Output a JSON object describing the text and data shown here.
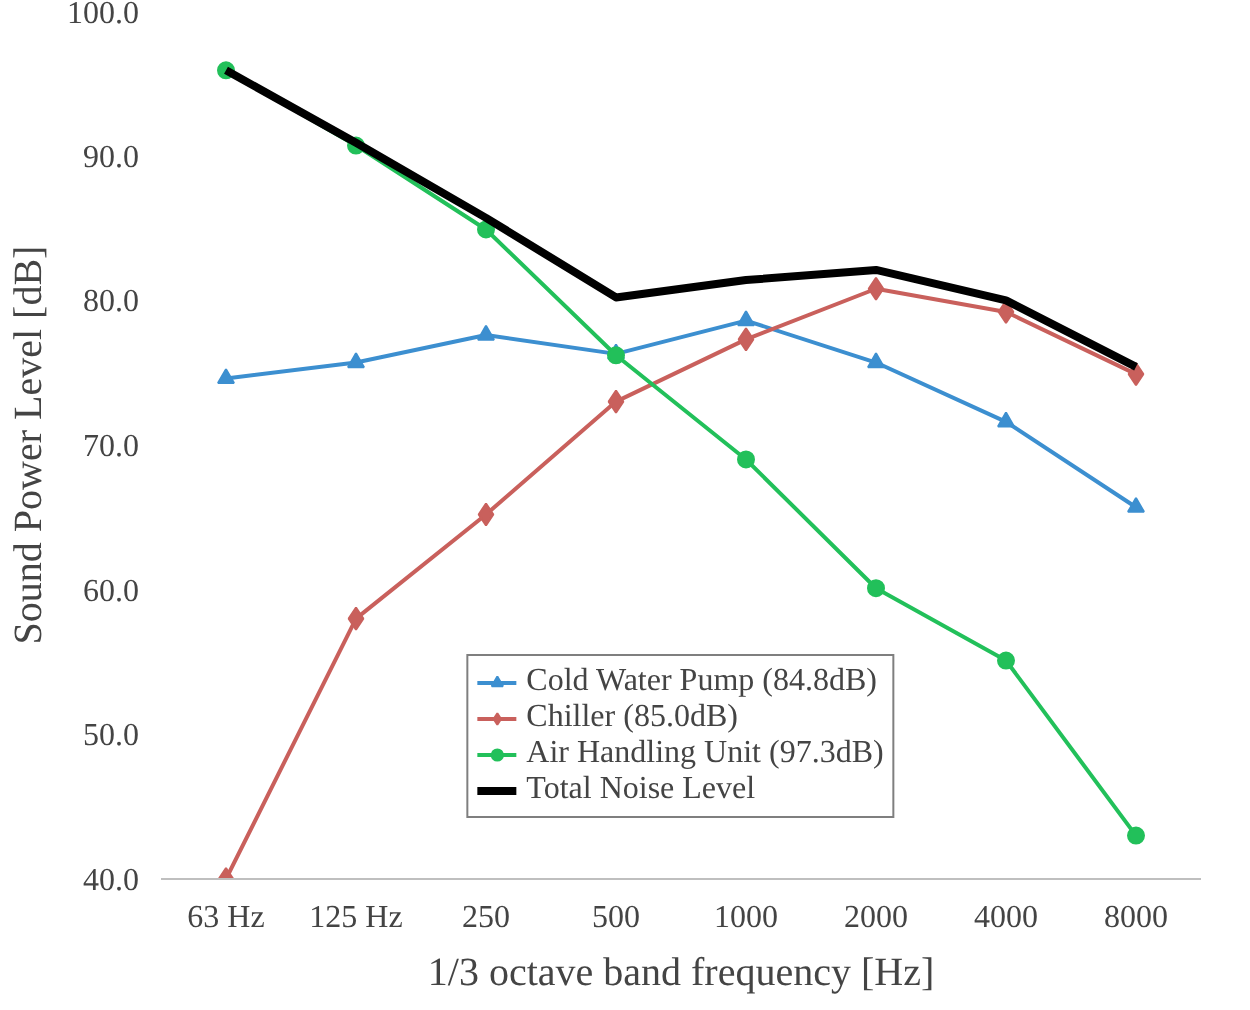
{
  "chart_data": {
    "type": "line",
    "xlabel": "1/3 octave band frequency [Hz]",
    "ylabel": "Sound Power Level [dB]",
    "categories": [
      "63 Hz",
      "125 Hz",
      "250",
      "500",
      "1000",
      "2000",
      "4000",
      "8000"
    ],
    "ylim": [
      40,
      100
    ],
    "yticks": [
      {
        "value": 40,
        "label": "40.0"
      },
      {
        "value": 50,
        "label": "50.0"
      },
      {
        "value": 60,
        "label": "60.0"
      },
      {
        "value": 70,
        "label": "70.0"
      },
      {
        "value": 80,
        "label": "80.0"
      },
      {
        "value": 90,
        "label": "90.0"
      },
      {
        "value": 100,
        "label": "100.0"
      }
    ],
    "grid": false,
    "legend": "bottom",
    "series": [
      {
        "name": "Cold Water Pump (84.8dB)",
        "color": "#3c8fd0",
        "marker": "triangle",
        "values": [
          74.6,
          75.7,
          77.6,
          76.3,
          78.6,
          75.7,
          71.6,
          65.7
        ]
      },
      {
        "name": "Chiller (85.0dB)",
        "color": "#c9605c",
        "marker": "diamond",
        "values": [
          40.0,
          58.0,
          65.2,
          73.0,
          77.3,
          80.8,
          79.2,
          74.9
        ]
      },
      {
        "name": "Air Handling Unit (97.3dB)",
        "color": "#22c05a",
        "marker": "circle",
        "values": [
          95.9,
          90.7,
          84.9,
          76.2,
          69.0,
          60.1,
          55.1,
          43.0
        ]
      },
      {
        "name": "Total Noise Level",
        "color": "#000000",
        "marker": "none",
        "values": [
          95.9,
          90.9,
          85.7,
          80.2,
          81.4,
          82.1,
          80.0,
          75.4
        ]
      }
    ]
  }
}
